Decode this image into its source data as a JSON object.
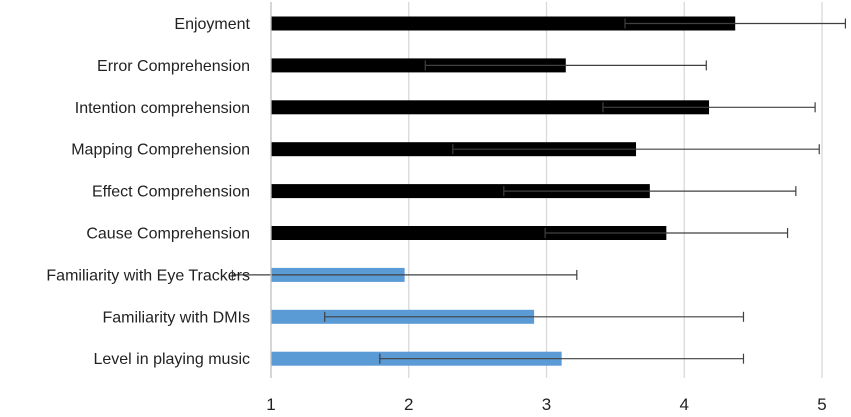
{
  "chart_data": {
    "type": "bar",
    "orientation": "horizontal",
    "categories": [
      "Enjoyment",
      "Error Comprehension",
      "Intention comprehension",
      "Mapping Comprehension",
      "Effect Comprehension",
      "Cause Comprehension",
      "Familiarity with Eye Trackers",
      "Familiarity with DMIs",
      "Level in playing music"
    ],
    "values": [
      4.37,
      3.14,
      4.18,
      3.65,
      3.75,
      3.87,
      1.97,
      2.91,
      3.11
    ],
    "errors": [
      0.8,
      1.02,
      0.77,
      1.33,
      1.06,
      0.88,
      1.25,
      1.52,
      1.32
    ],
    "colors": [
      "#000000",
      "#000000",
      "#000000",
      "#000000",
      "#000000",
      "#000000",
      "#5B9BD5",
      "#5B9BD5",
      "#5B9BD5"
    ],
    "error_bar_color": "#404040",
    "grid_color": "#d9d9d9",
    "title": "",
    "xlabel": "",
    "ylabel": "",
    "xlim": [
      1,
      5.2
    ],
    "x_ticks": [
      1,
      2,
      3,
      4,
      5
    ],
    "grid": true,
    "legend": "none"
  }
}
